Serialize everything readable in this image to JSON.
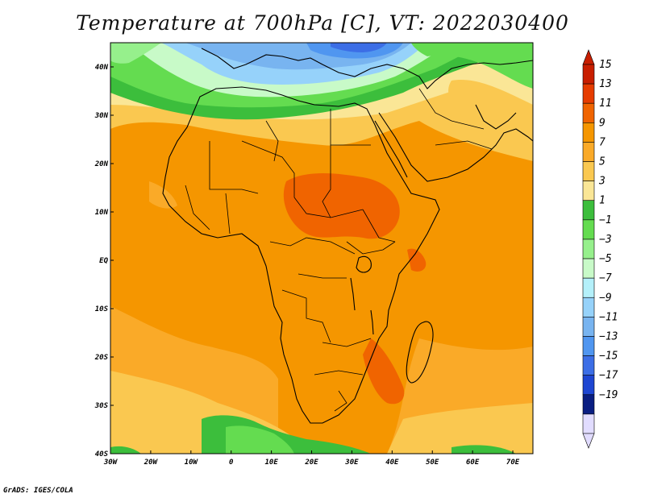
{
  "title": "Temperature at 700hPa [C], VT: 2022030400",
  "credit": "GrADS: IGES/COLA",
  "map": {
    "lon_range": [
      -30,
      75
    ],
    "lat_range": [
      -40,
      45
    ],
    "lon_ticks": [
      {
        "value": -30,
        "label": "30W"
      },
      {
        "value": -20,
        "label": "20W"
      },
      {
        "value": -10,
        "label": "10W"
      },
      {
        "value": 0,
        "label": "0"
      },
      {
        "value": 10,
        "label": "10E"
      },
      {
        "value": 20,
        "label": "20E"
      },
      {
        "value": 30,
        "label": "30E"
      },
      {
        "value": 40,
        "label": "40E"
      },
      {
        "value": 50,
        "label": "50E"
      },
      {
        "value": 60,
        "label": "60E"
      },
      {
        "value": 70,
        "label": "70E"
      }
    ],
    "lat_ticks": [
      {
        "value": 40,
        "label": "40N"
      },
      {
        "value": 30,
        "label": "30N"
      },
      {
        "value": 20,
        "label": "20N"
      },
      {
        "value": 10,
        "label": "10N"
      },
      {
        "value": 0,
        "label": "EQ"
      },
      {
        "value": -10,
        "label": "10S"
      },
      {
        "value": -20,
        "label": "20S"
      },
      {
        "value": -30,
        "label": "30S"
      },
      {
        "value": -40,
        "label": "40S"
      }
    ]
  },
  "colorbar": {
    "levels": [
      15,
      13,
      11,
      9,
      7,
      5,
      3,
      1,
      -1,
      -3,
      -5,
      -7,
      -9,
      -11,
      -13,
      -15,
      -17,
      -19
    ],
    "labels": [
      "15",
      "13",
      "11",
      "9",
      "7",
      "5",
      "3",
      "1",
      "−1",
      "−3",
      "−5",
      "−7",
      "−9",
      "−11",
      "−13",
      "−15",
      "−17",
      "−19"
    ],
    "colors": [
      "#c81e00",
      "#e63c00",
      "#f06400",
      "#f59600",
      "#faaa28",
      "#fac850",
      "#fae696",
      "#3cbe3c",
      "#64dc50",
      "#96f08c",
      "#c8fac8",
      "#b4f0fa",
      "#96d2fa",
      "#78b4f0",
      "#5096f0",
      "#3c6ee6",
      "#1e46d2",
      "#0a1e82",
      "#e1dcff"
    ],
    "top_color": "#c81e00",
    "bottom_color": "#e1dcff"
  }
}
